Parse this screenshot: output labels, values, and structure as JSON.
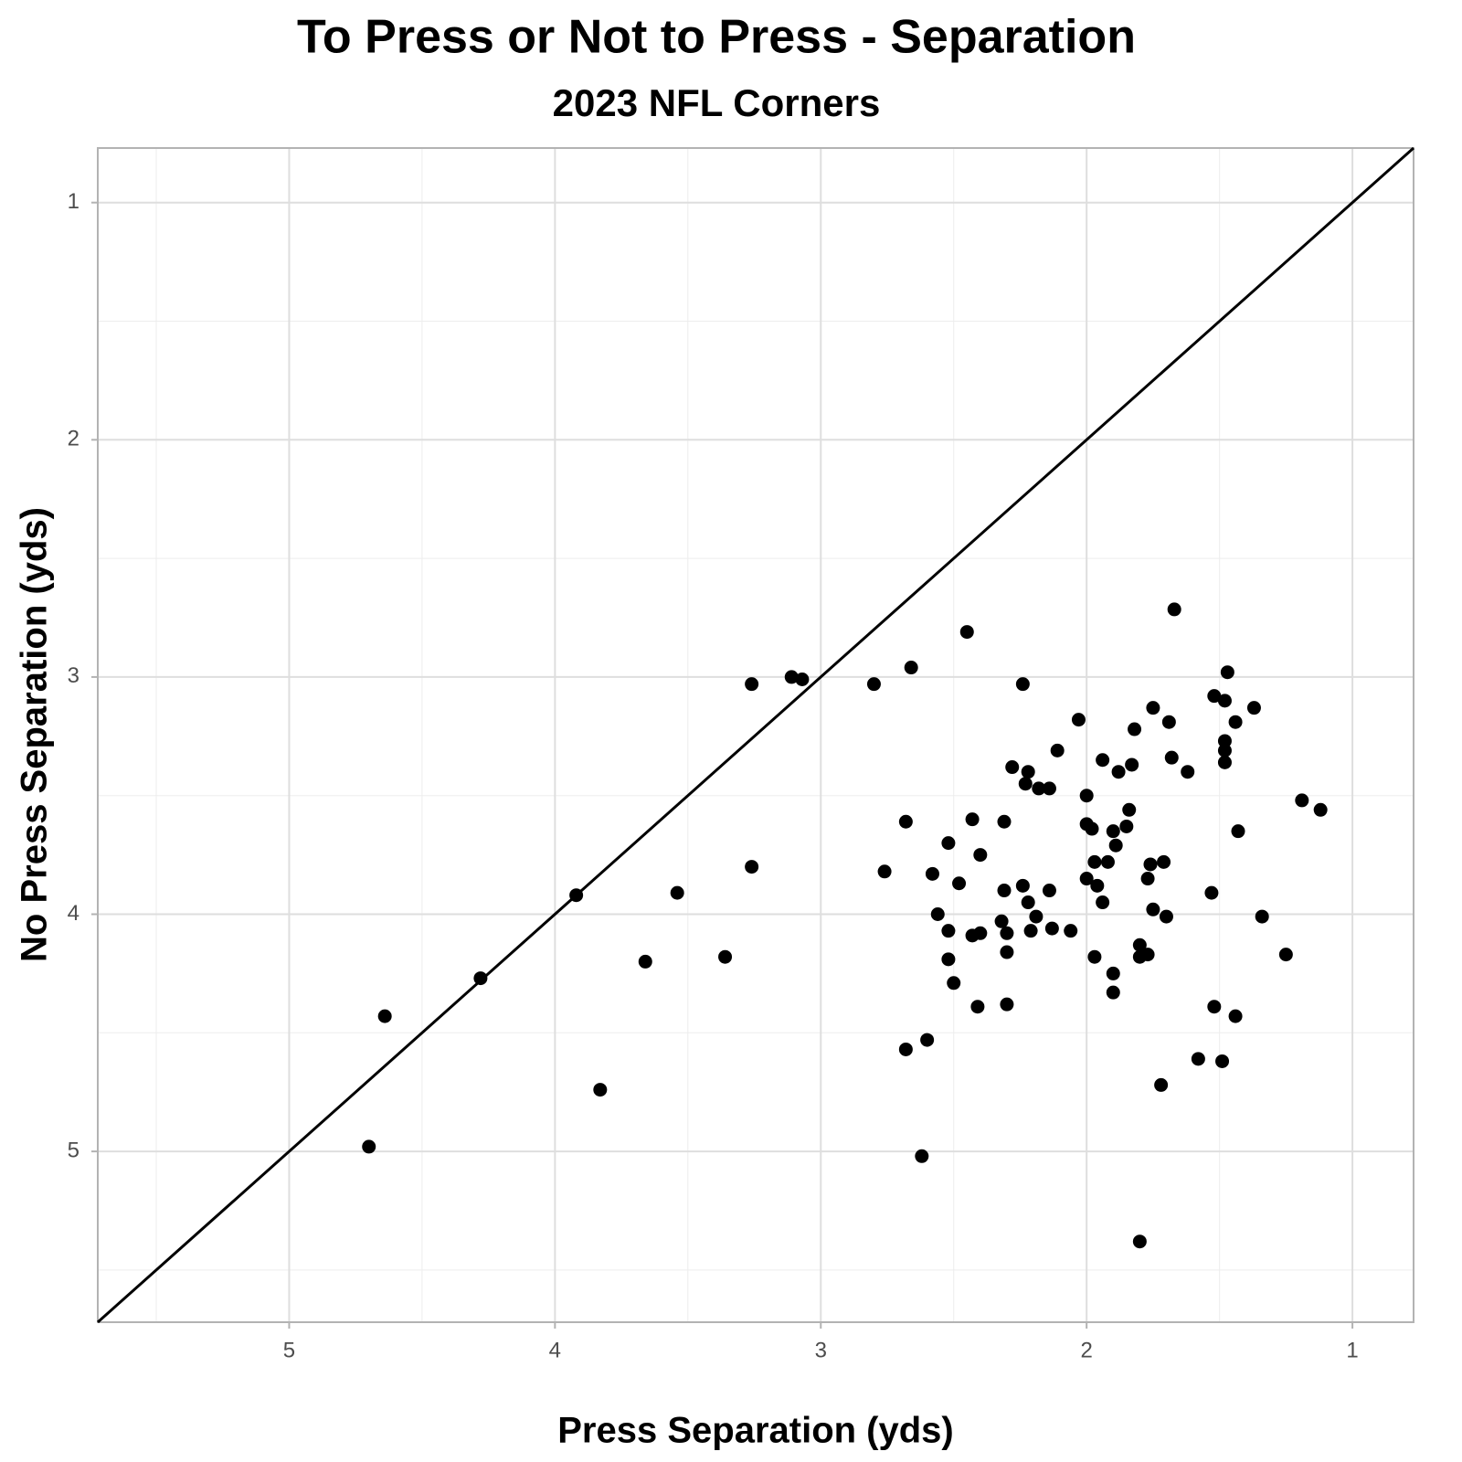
{
  "chart_data": {
    "type": "scatter",
    "title": "To Press or Not to Press - Separation",
    "subtitle": "2023 NFL Corners",
    "x_label": "Press Separation (yds)",
    "y_label": "No Press Separation (yds)",
    "xlim": [
      5.72,
      0.77
    ],
    "ylim": [
      5.72,
      0.77
    ],
    "xticks": [
      5,
      4,
      3,
      2,
      1
    ],
    "yticks": [
      1,
      2,
      3,
      4,
      5
    ],
    "x_minor_ticks": [
      5.5,
      4.5,
      3.5,
      2.5,
      1.5
    ],
    "y_minor_ticks": [
      1.5,
      2.5,
      3.5,
      4.5,
      5.5
    ],
    "grid": true,
    "identity_line": true,
    "color": "#000000",
    "x": [
      1.67,
      2.45,
      2.66,
      3.26,
      3.11,
      3.07,
      2.8,
      2.24,
      1.47,
      1.52,
      1.48,
      1.37,
      1.75,
      2.03,
      1.69,
      1.44,
      1.82,
      1.48,
      1.48,
      2.11,
      1.94,
      1.68,
      1.48,
      2.28,
      1.83,
      1.88,
      1.62,
      2.22,
      2.23,
      2.18,
      2.14,
      2.0,
      1.19,
      1.12,
      1.84,
      2.68,
      2.43,
      2.31,
      2.0,
      1.98,
      1.85,
      1.9,
      1.43,
      1.89,
      2.52,
      2.4,
      1.97,
      1.92,
      1.76,
      1.71,
      3.26,
      2.76,
      2.58,
      2.0,
      1.77,
      2.48,
      1.96,
      2.24,
      2.31,
      2.14,
      1.53,
      3.54,
      3.92,
      1.94,
      2.22,
      1.75,
      2.56,
      2.19,
      1.7,
      1.34,
      2.32,
      2.52,
      2.21,
      2.13,
      2.06,
      2.3,
      2.43,
      2.4,
      1.8,
      2.3,
      1.25,
      1.97,
      1.77,
      1.8,
      3.36,
      2.52,
      3.66,
      1.9,
      4.28,
      2.5,
      1.9,
      2.3,
      2.41,
      1.52,
      1.44,
      4.64,
      2.6,
      2.68,
      1.58,
      1.49,
      1.72,
      3.83,
      4.7,
      2.62,
      1.8
    ],
    "values": [
      2.715,
      2.81,
      2.96,
      3.03,
      3.0,
      3.01,
      3.03,
      3.03,
      2.98,
      3.08,
      3.1,
      3.13,
      3.13,
      3.18,
      3.19,
      3.19,
      3.22,
      3.27,
      3.31,
      3.31,
      3.35,
      3.34,
      3.36,
      3.38,
      3.37,
      3.4,
      3.4,
      3.4,
      3.45,
      3.47,
      3.47,
      3.5,
      3.52,
      3.56,
      3.56,
      3.61,
      3.6,
      3.61,
      3.62,
      3.64,
      3.63,
      3.65,
      3.65,
      3.71,
      3.7,
      3.75,
      3.78,
      3.78,
      3.79,
      3.78,
      3.8,
      3.82,
      3.83,
      3.85,
      3.85,
      3.87,
      3.88,
      3.88,
      3.9,
      3.9,
      3.91,
      3.91,
      3.92,
      3.95,
      3.95,
      3.98,
      4.0,
      4.01,
      4.01,
      4.01,
      4.03,
      4.07,
      4.07,
      4.06,
      4.07,
      4.08,
      4.09,
      4.08,
      4.13,
      4.16,
      4.17,
      4.18,
      4.17,
      4.18,
      4.18,
      4.19,
      4.2,
      4.25,
      4.27,
      4.29,
      4.33,
      4.38,
      4.39,
      4.39,
      4.43,
      4.43,
      4.53,
      4.57,
      4.61,
      4.62,
      4.72,
      4.74,
      4.98,
      5.02,
      5.38
    ]
  }
}
